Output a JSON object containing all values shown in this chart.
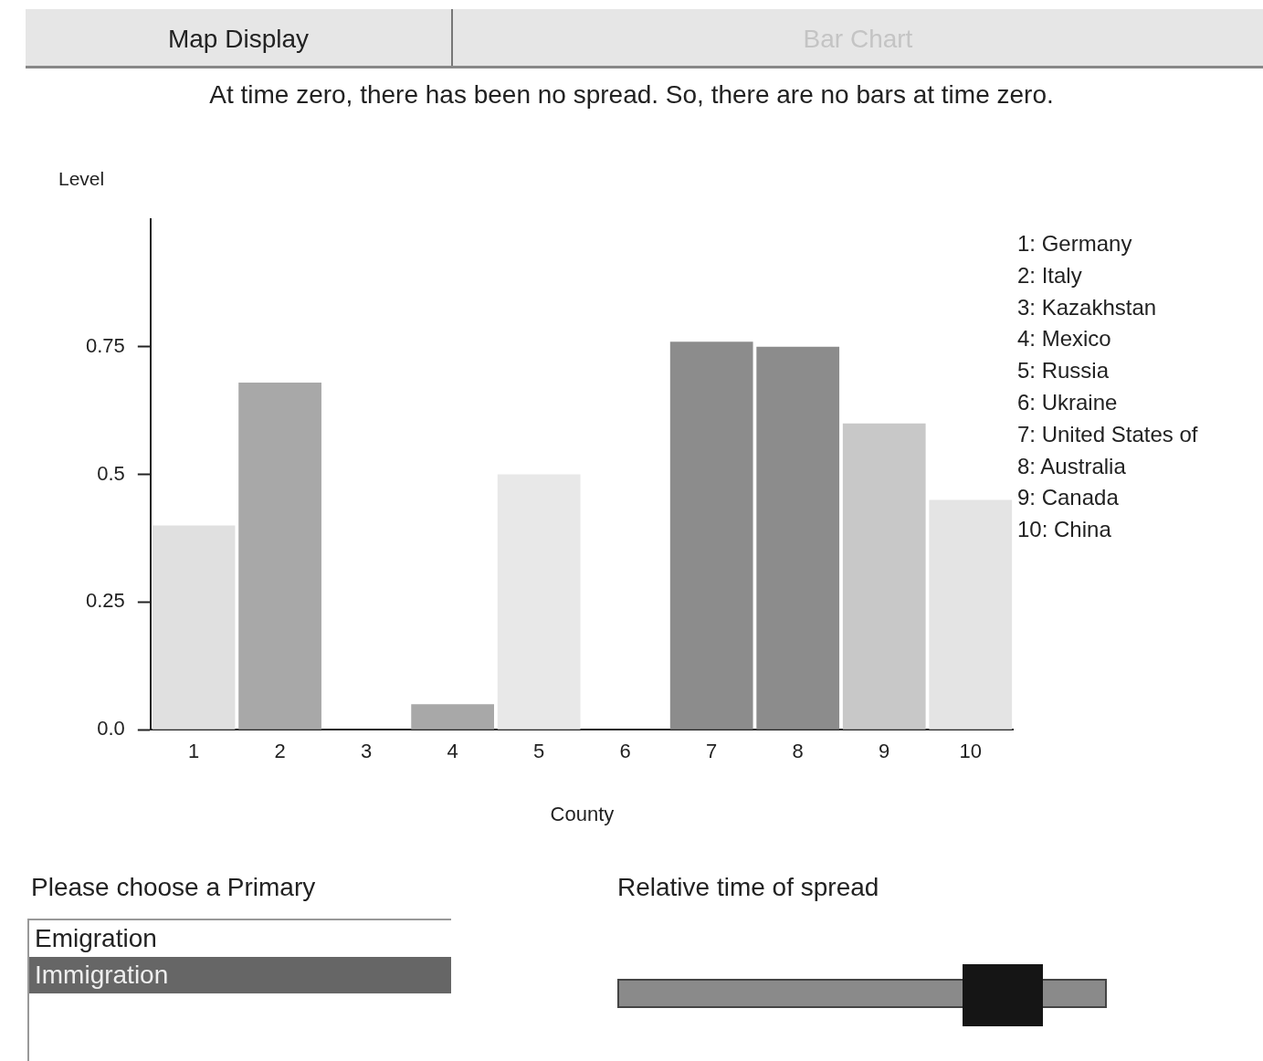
{
  "chart_data": {
    "type": "bar",
    "subtitle": "At time zero, there has been no spread.  So, there are no bars at time zero.",
    "xlabel": "County",
    "ylabel": "Level",
    "categories": [
      "1",
      "2",
      "3",
      "4",
      "5",
      "6",
      "7",
      "8",
      "9",
      "10"
    ],
    "values": [
      0.4,
      0.68,
      0,
      0.05,
      0.5,
      0,
      0.76,
      0.75,
      0.6,
      0.45
    ],
    "colors": [
      "#e0e0e0",
      "#a8a8a8",
      "#a8a8a8",
      "#a8a8a8",
      "#e8e8e8",
      "#e8e8e8",
      "#8c8c8c",
      "#8c8c8c",
      "#c8c8c8",
      "#e4e4e4"
    ],
    "ylim": [
      0,
      1
    ],
    "yticks": [
      {
        "value": 0,
        "label": "0.0"
      },
      0.25,
      0.5,
      0.75
    ],
    "grid": false,
    "legend": false,
    "annotations": [
      "Map Display",
      "Bar Chart",
      "1: Germany",
      "2: Italy",
      "3: Kazakhstan",
      "4: Mexico",
      "5: Russia",
      "6: Ukraine",
      "7: United States of",
      "8: Australia",
      "9: Canada",
      "10: China",
      "Please choose a Primary",
      "Emigration",
      "Immigration",
      "Relative time of spread"
    ]
  }
}
